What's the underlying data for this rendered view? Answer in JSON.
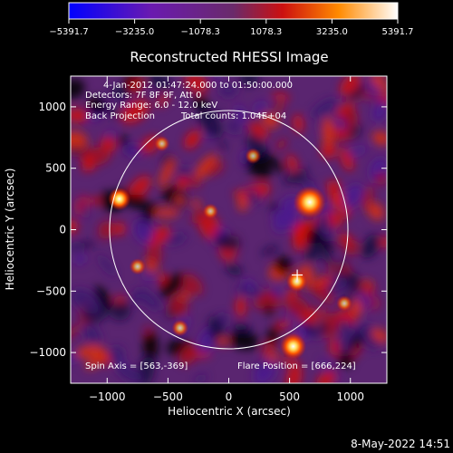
{
  "chart_data": {
    "type": "heatmap",
    "title": "Reconstructed RHESSI Image",
    "xlabel": "Heliocentric X (arcsec)",
    "ylabel": "Heliocentric Y (arcsec)",
    "xlim": [
      -1300,
      1300
    ],
    "ylim": [
      -1250,
      1250
    ],
    "x_ticks": [
      -1000,
      -500,
      0,
      500,
      1000
    ],
    "y_ticks": [
      -1000,
      -500,
      0,
      500,
      1000
    ],
    "x_tick_labels": [
      "−1000",
      "−500",
      "0",
      "500",
      "1000"
    ],
    "y_tick_labels": [
      "−1000",
      "−500",
      "0",
      "500",
      "1000"
    ],
    "colorbar": {
      "min": -5391.7,
      "max": 5391.7,
      "tick_labels": [
        "−5391.7",
        "−3235.0",
        "−1078.3",
        "1078.3",
        "3235.0",
        "5391.7"
      ],
      "colors": [
        "#0000ff",
        "#6a1ab0",
        "#6a2a6a",
        "#cc1010",
        "#ff8a00",
        "#ffffff"
      ]
    },
    "annotations": [
      "4-Jan-2012 01:47:24.000 to 01:50:00.000",
      "Detectors: 7F 8F 9F, Att 0",
      "Energy Range: 6.0 - 12.0 keV",
      "Back Projection",
      "Total counts: 1.04E+04"
    ],
    "spin_axis_label": "Spin Axis = [563,-369]",
    "flare_position_label": "Flare Position = [666,224]",
    "spin_axis": [
      563,
      -369
    ],
    "flare_position": [
      666,
      224
    ],
    "solar_disk": {
      "center": [
        0,
        0
      ],
      "radius": 975
    },
    "sources": [
      {
        "x": 666,
        "y": 224,
        "value": 5391.7
      },
      {
        "x": 530,
        "y": -950,
        "value": 3800
      },
      {
        "x": -900,
        "y": 250,
        "value": 3000
      },
      {
        "x": 560,
        "y": -420,
        "value": 2600
      },
      {
        "x": -400,
        "y": -800,
        "value": 1500
      },
      {
        "x": -750,
        "y": -300,
        "value": 1400
      },
      {
        "x": 200,
        "y": 600,
        "value": 1300
      },
      {
        "x": -150,
        "y": 150,
        "value": 1200
      },
      {
        "x": 950,
        "y": -600,
        "value": 1300
      },
      {
        "x": -550,
        "y": 700,
        "value": 1200
      }
    ]
  },
  "timestamp": "8-May-2022 14:51"
}
